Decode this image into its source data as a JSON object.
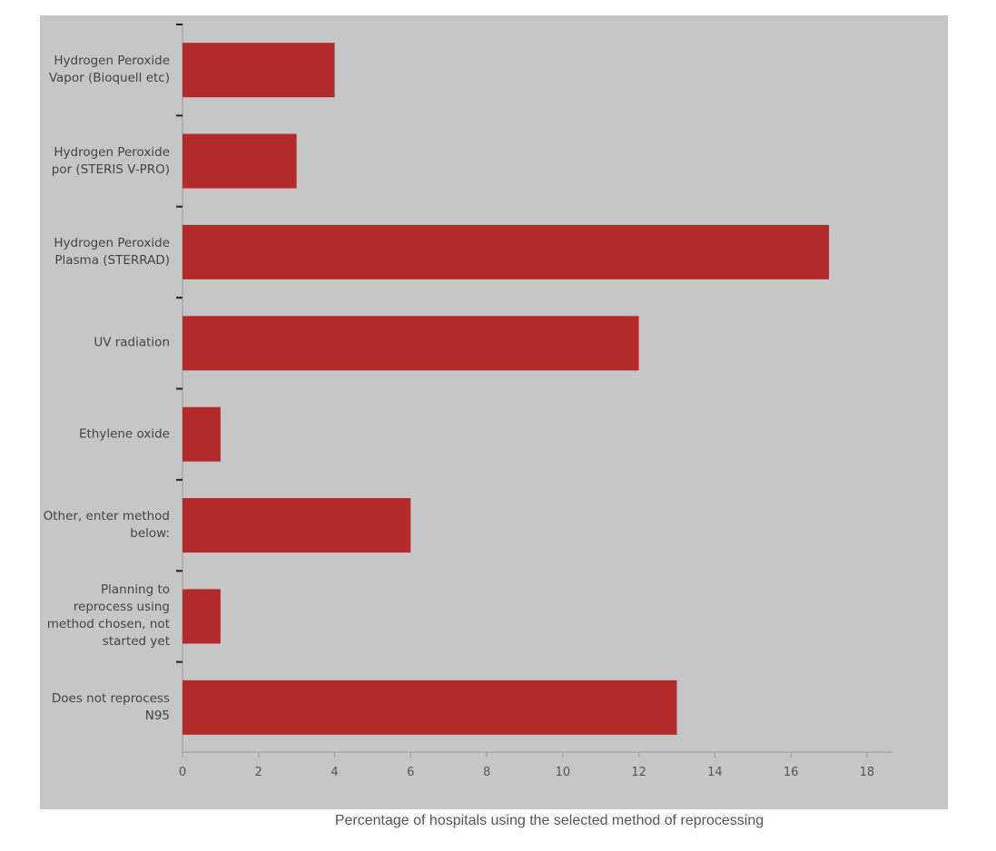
{
  "chart_data": {
    "type": "bar",
    "orientation": "horizontal",
    "categories": [
      "Hydrogen Peroxide\nVapor (Bioquell etc)",
      "Hydrogen Peroxide\npor (STERIS V-PRO)",
      "Hydrogen Peroxide\nPlasma (STERRAD)",
      "UV radiation",
      "Ethylene oxide",
      "Other, enter method\nbelow:",
      "Planning to\nreprocess using\nmethod chosen, not\nstarted yet",
      "Does not reprocess\nN95"
    ],
    "values": [
      4,
      3,
      17,
      12,
      1,
      6,
      1,
      13
    ],
    "color": "#b22a2a",
    "xlim": [
      0,
      18.67
    ],
    "xticks": [
      0,
      2,
      4,
      6,
      8,
      10,
      12,
      14,
      16,
      18
    ],
    "caption": "Percentage of hospitals using the selected method of reprocessing"
  }
}
